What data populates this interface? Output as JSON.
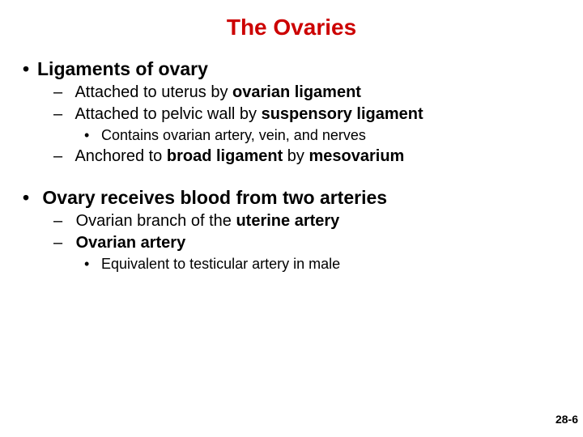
{
  "title": {
    "text": "The Ovaries",
    "color": "#cc0000",
    "fontsize": 28
  },
  "pagenum": {
    "text": "28-6",
    "color": "#000000",
    "fontsize": 14
  },
  "text": {
    "body_color": "#000000",
    "level1_fontsize": 23,
    "level2_fontsize": 20,
    "level3_fontsize": 18
  },
  "section1": {
    "heading_pre": "Ligaments of ovary",
    "items": [
      {
        "pre": "Attached to uterus by ",
        "bold": "ovarian ligament",
        "post": ""
      },
      {
        "pre": "Attached to pelvic wall by ",
        "bold": "suspensory ligament",
        "post": ""
      }
    ],
    "sub1": {
      "text": "Contains ovarian artery, vein, and nerves"
    },
    "item3": {
      "pre": "Anchored to ",
      "bold1": "broad ligament",
      "mid": " by ",
      "bold2": "mesovarium"
    }
  },
  "section2": {
    "heading": "Ovary receives blood from two arteries",
    "items": [
      {
        "pre": "Ovarian branch of the ",
        "bold": "uterine artery",
        "post": ""
      },
      {
        "pre": "",
        "bold": "Ovarian artery",
        "post": ""
      }
    ],
    "sub1": {
      "text": "Equivalent to testicular artery in male"
    }
  }
}
